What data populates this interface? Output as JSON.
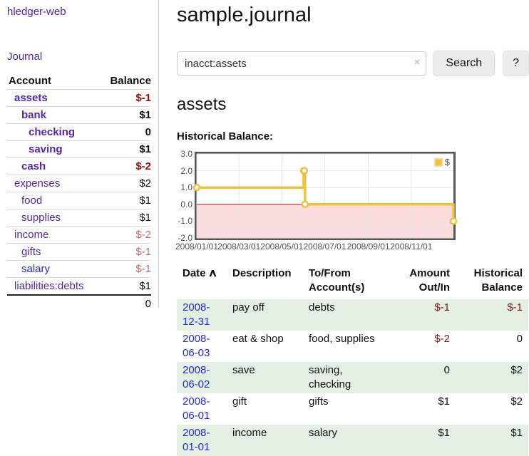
{
  "sidebar": {
    "brand": "hledger-web",
    "nav_journal": "Journal",
    "accounts_table": {
      "headers": [
        "Account",
        "Balance"
      ],
      "rows": [
        {
          "name": "assets",
          "indent": 0,
          "in_account": true,
          "balance": "$-1"
        },
        {
          "name": "bank",
          "indent": 1,
          "in_account": true,
          "balance": "$1"
        },
        {
          "name": "checking",
          "indent": 2,
          "in_account": true,
          "balance": "0"
        },
        {
          "name": "saving",
          "indent": 2,
          "in_account": true,
          "balance": "$1"
        },
        {
          "name": "cash",
          "indent": 1,
          "in_account": true,
          "balance": "$-2"
        },
        {
          "name": "expenses",
          "indent": 0,
          "in_account": false,
          "balance": "$2"
        },
        {
          "name": "food",
          "indent": 1,
          "in_account": false,
          "balance": "$1"
        },
        {
          "name": "supplies",
          "indent": 1,
          "in_account": false,
          "balance": "$1"
        },
        {
          "name": "income",
          "indent": 0,
          "in_account": false,
          "balance": "$-2"
        },
        {
          "name": "gifts",
          "indent": 1,
          "in_account": false,
          "balance": "$-1"
        },
        {
          "name": "salary",
          "indent": 1,
          "in_account": false,
          "balance": "$-1",
          "unvisited": true
        },
        {
          "name": "liabilities:debts",
          "indent": 0,
          "in_account": false,
          "balance": "$1"
        }
      ],
      "total": "0"
    }
  },
  "header": {
    "title": "sample.journal"
  },
  "search": {
    "value": "inacct:assets",
    "clear_icon": "×",
    "button": "Search",
    "help_button": "?"
  },
  "account_page": {
    "heading": "assets",
    "chart_label": "Historical Balance:"
  },
  "chart_data": {
    "type": "line",
    "title": "Historical Balance:",
    "series": [
      {
        "name": "$",
        "color": "#EDC240",
        "step": true,
        "points": [
          [
            "2008-01-01",
            1
          ],
          [
            "2008-06-01",
            2
          ],
          [
            "2008-06-02",
            2
          ],
          [
            "2008-06-03",
            0
          ],
          [
            "2008-12-31",
            -1
          ]
        ]
      }
    ],
    "xlim": [
      "2008-01-01",
      "2008-12-31"
    ],
    "ylim": [
      -2,
      3
    ],
    "x_ticks": [
      {
        "x": "2008-01-01",
        "label": "2008/01/01"
      },
      {
        "x": "2008-03-01",
        "label": "2008/03/01"
      },
      {
        "x": "2008-05-01",
        "label": "2008/05/01"
      },
      {
        "x": "2008-07-01",
        "label": "2008/07/01"
      },
      {
        "x": "2008-09-01",
        "label": "2008/09/01"
      },
      {
        "x": "2008-11-01",
        "label": "2008/11/01"
      }
    ],
    "y_ticks": [
      {
        "v": 3,
        "label": "3.0"
      },
      {
        "v": 2,
        "label": "2.0"
      },
      {
        "v": 1,
        "label": "1.0"
      },
      {
        "v": 0,
        "label": "0.0"
      },
      {
        "v": -1,
        "label": "-1.0"
      },
      {
        "v": -2,
        "label": "-2.0"
      }
    ],
    "grid": true,
    "legend_position": "top-right",
    "grid_color": "#E6E6E6",
    "zero_line_color": "#A61B1B",
    "negative_region_color": "#FADCDC"
  },
  "register": {
    "headers": [
      "Date",
      "Description",
      "To/From Account(s)",
      "Amount Out/In",
      "Historical Balance"
    ],
    "sort_indicator": "∧",
    "rows": [
      {
        "date": "2008-12-31",
        "description": "pay off",
        "accounts": "debts",
        "amount": "$-1",
        "balance": "$-1"
      },
      {
        "date": "2008-06-03",
        "description": "eat & shop",
        "accounts": "food, supplies",
        "amount": "$-2",
        "balance": "0"
      },
      {
        "date": "2008-06-02",
        "description": "save",
        "accounts": "saving,\nchecking",
        "amount": "0",
        "balance": "$2"
      },
      {
        "date": "2008-06-01",
        "description": "gift",
        "accounts": "gifts",
        "amount": "$1",
        "balance": "$2"
      },
      {
        "date": "2008-01-01",
        "description": "income",
        "accounts": "salary",
        "amount": "$1",
        "balance": "$1"
      }
    ]
  }
}
